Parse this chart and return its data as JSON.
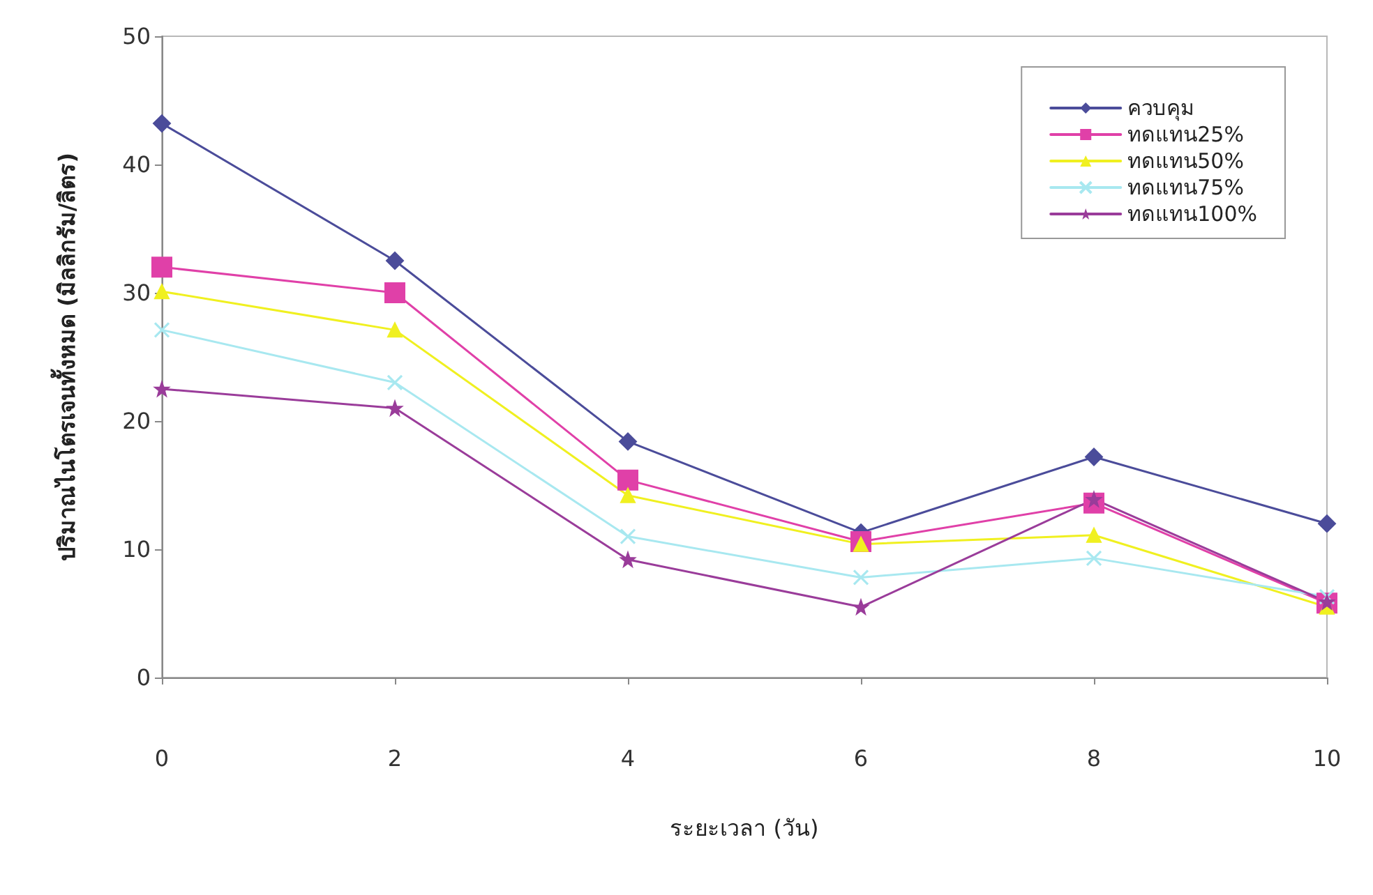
{
  "chart_data": {
    "type": "line",
    "xlabel": "ระยะเวลา (วัน)",
    "ylabel": "ปริมาณไนโตรเจนทั้งหมด (มิลลิกรัม/ลิตร)",
    "x": [
      0,
      2,
      4,
      6,
      8,
      10
    ],
    "series": [
      {
        "name": "ควบคุม",
        "color": "#4b4c9a",
        "marker": "diamond",
        "values": [
          43.2,
          32.5,
          18.4,
          11.3,
          17.2,
          12.0
        ]
      },
      {
        "name": "ทดแทน25%",
        "color": "#e040a8",
        "marker": "square",
        "values": [
          32.0,
          30.0,
          15.4,
          10.6,
          13.6,
          5.8
        ]
      },
      {
        "name": "ทดแทน50%",
        "color": "#f0f020",
        "marker": "triangle",
        "values": [
          30.1,
          27.1,
          14.2,
          10.4,
          11.1,
          5.5
        ]
      },
      {
        "name": "ทดแทน75%",
        "color": "#a8e8f0",
        "marker": "cross",
        "values": [
          27.1,
          23.0,
          11.0,
          7.8,
          9.3,
          6.3
        ]
      },
      {
        "name": "ทดแทน100%",
        "color": "#9a3c9a",
        "marker": "star",
        "values": [
          22.5,
          21.0,
          9.2,
          5.5,
          13.9,
          5.9
        ]
      }
    ],
    "xlim": [
      0,
      10
    ],
    "xticks": [
      0,
      2,
      4,
      6,
      8,
      10
    ],
    "ylim": [
      0,
      50
    ],
    "yticks": [
      0,
      10,
      20,
      30,
      40,
      50
    ],
    "grid": false,
    "legend": "top right",
    "line_style": "solid"
  }
}
